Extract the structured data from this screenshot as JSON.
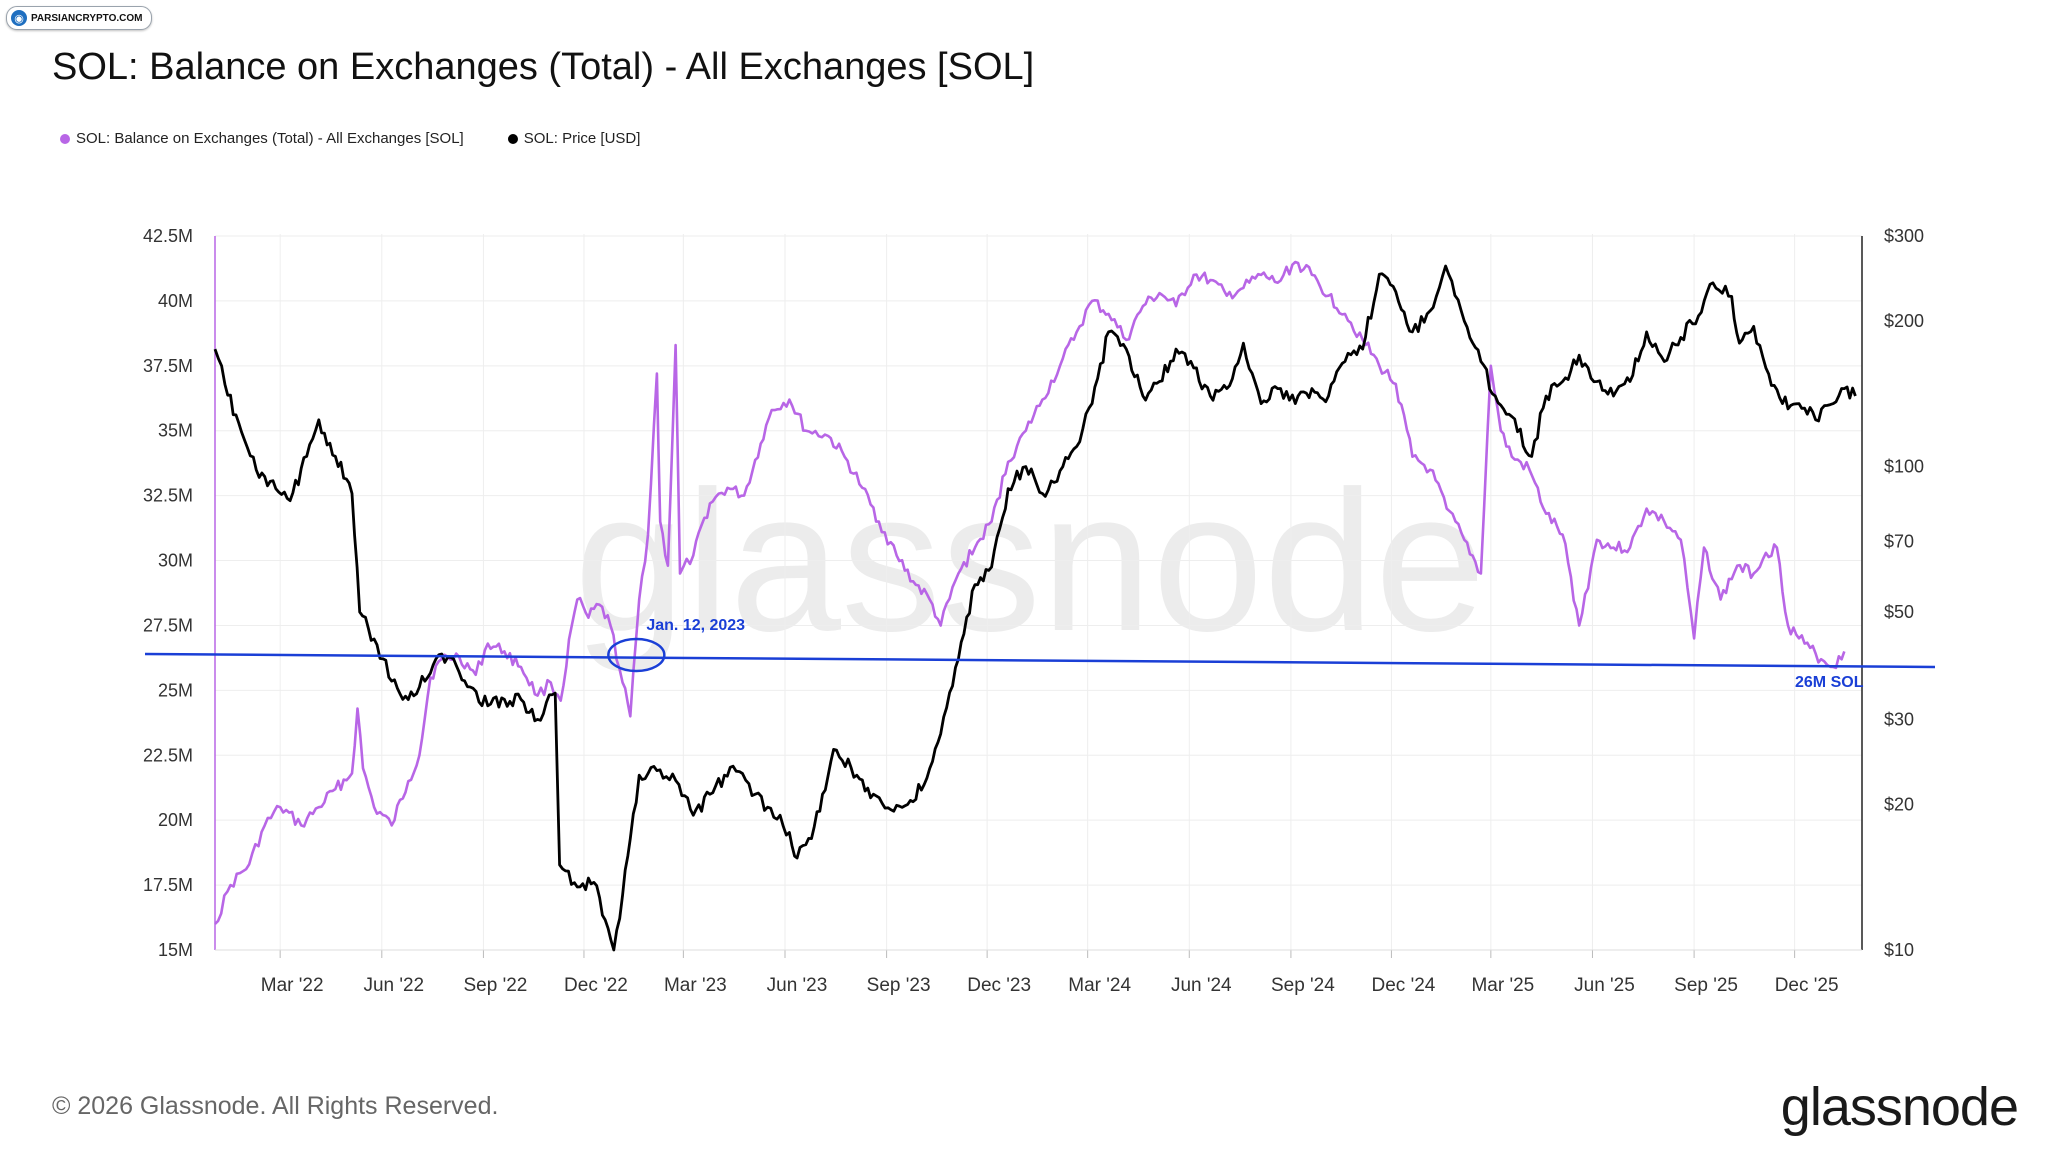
{
  "source_badge": {
    "text": "PARSIANCRYPTO.COM",
    "icon": "globe-icon"
  },
  "title": "SOL: Balance on Exchanges (Total) - All Exchanges [SOL]",
  "legend": [
    {
      "label": "SOL: Balance on Exchanges (Total) - All Exchanges [SOL]",
      "color": "#b866e6"
    },
    {
      "label": "SOL: Price [USD]",
      "color": "#000000"
    }
  ],
  "watermark": "glassnode",
  "footer": "© 2026 Glassnode. All Rights Reserved.",
  "brand": "glassnode",
  "chart_data": {
    "type": "line",
    "x_ticks": [
      "Mar '22",
      "Jun '22",
      "Sep '22",
      "Dec '22",
      "Mar '23",
      "Jun '23",
      "Sep '23",
      "Dec '23",
      "Mar '24",
      "Jun '24",
      "Sep '24",
      "Dec '24",
      "Mar '25",
      "Jun '25",
      "Sep '25",
      "Dec '25"
    ],
    "x_start": "2022-01-01",
    "x_end": "2026-01-31",
    "left_axis": {
      "ticks": [
        "42.5M",
        "40M",
        "37.5M",
        "35M",
        "32.5M",
        "30M",
        "27.5M",
        "25M",
        "22.5M",
        "20M",
        "17.5M",
        "15M"
      ],
      "range": [
        15000000,
        42500000
      ]
    },
    "right_axis": {
      "scale": "log",
      "ticks": [
        "$300",
        "$200",
        "$100",
        "$70",
        "$50",
        "$30",
        "$20",
        "$10"
      ],
      "tick_values": [
        300,
        200,
        100,
        70,
        50,
        30,
        20,
        10
      ],
      "range": [
        10,
        300
      ]
    },
    "grid": true,
    "series": [
      {
        "name": "SOL: Balance on Exchanges (Total) - All Exchanges [SOL]",
        "color": "#b866e6",
        "axis": "left",
        "points": [
          [
            "2022-01-01",
            16.0
          ],
          [
            "2022-01-15",
            17.5
          ],
          [
            "2022-02-01",
            18.3
          ],
          [
            "2022-02-15",
            19.8
          ],
          [
            "2022-03-01",
            20.5
          ],
          [
            "2022-03-20",
            19.8
          ],
          [
            "2022-04-05",
            20.5
          ],
          [
            "2022-04-20",
            21.2
          ],
          [
            "2022-05-05",
            21.8
          ],
          [
            "2022-05-10",
            24.3
          ],
          [
            "2022-05-15",
            22.0
          ],
          [
            "2022-05-25",
            20.5
          ],
          [
            "2022-06-10",
            19.8
          ],
          [
            "2022-06-25",
            21.5
          ],
          [
            "2022-07-05",
            22.5
          ],
          [
            "2022-07-15",
            25.5
          ],
          [
            "2022-07-25",
            26.2
          ],
          [
            "2022-08-10",
            26.3
          ],
          [
            "2022-08-25",
            25.6
          ],
          [
            "2022-09-05",
            26.8
          ],
          [
            "2022-09-20",
            26.5
          ],
          [
            "2022-10-05",
            25.9
          ],
          [
            "2022-10-20",
            24.8
          ],
          [
            "2022-11-01",
            25.3
          ],
          [
            "2022-11-10",
            24.6
          ],
          [
            "2022-11-20",
            27.5
          ],
          [
            "2022-11-25",
            28.5
          ],
          [
            "2022-12-05",
            27.8
          ],
          [
            "2022-12-15",
            28.3
          ],
          [
            "2022-12-25",
            27.5
          ],
          [
            "2023-01-05",
            25.3
          ],
          [
            "2023-01-12",
            24.0
          ],
          [
            "2023-01-20",
            28.5
          ],
          [
            "2023-01-28",
            31.0
          ],
          [
            "2023-02-05",
            37.2
          ],
          [
            "2023-02-08",
            31.5
          ],
          [
            "2023-02-15",
            29.8
          ],
          [
            "2023-02-22",
            38.3
          ],
          [
            "2023-02-26",
            29.5
          ],
          [
            "2023-03-10",
            30.2
          ],
          [
            "2023-03-25",
            32.2
          ],
          [
            "2023-04-10",
            32.8
          ],
          [
            "2023-04-25",
            32.5
          ],
          [
            "2023-05-10",
            34.5
          ],
          [
            "2023-05-20",
            35.8
          ],
          [
            "2023-06-05",
            36.2
          ],
          [
            "2023-06-20",
            35.0
          ],
          [
            "2023-07-10",
            34.8
          ],
          [
            "2023-07-25",
            34.0
          ],
          [
            "2023-08-10",
            32.8
          ],
          [
            "2023-08-25",
            31.5
          ],
          [
            "2023-09-10",
            30.2
          ],
          [
            "2023-09-25",
            29.2
          ],
          [
            "2023-10-10",
            28.5
          ],
          [
            "2023-10-20",
            27.5
          ],
          [
            "2023-11-05",
            29.5
          ],
          [
            "2023-11-20",
            30.5
          ],
          [
            "2023-12-05",
            31.5
          ],
          [
            "2023-12-20",
            33.8
          ],
          [
            "2024-01-05",
            35.0
          ],
          [
            "2024-01-20",
            36.2
          ],
          [
            "2024-02-05",
            37.5
          ],
          [
            "2024-02-20",
            38.8
          ],
          [
            "2024-03-05",
            40.0
          ],
          [
            "2024-03-20",
            39.5
          ],
          [
            "2024-04-05",
            38.5
          ],
          [
            "2024-04-20",
            39.8
          ],
          [
            "2024-05-05",
            40.3
          ],
          [
            "2024-05-20",
            39.8
          ],
          [
            "2024-06-05",
            41.0
          ],
          [
            "2024-06-20",
            40.8
          ],
          [
            "2024-07-05",
            40.2
          ],
          [
            "2024-07-20",
            40.5
          ],
          [
            "2024-08-05",
            41.0
          ],
          [
            "2024-08-20",
            40.7
          ],
          [
            "2024-09-05",
            41.5
          ],
          [
            "2024-09-20",
            41.0
          ],
          [
            "2024-10-05",
            40.2
          ],
          [
            "2024-10-20",
            39.5
          ],
          [
            "2024-11-05",
            38.5
          ],
          [
            "2024-11-20",
            37.5
          ],
          [
            "2024-12-05",
            36.8
          ],
          [
            "2024-12-20",
            34.0
          ],
          [
            "2025-01-05",
            33.5
          ],
          [
            "2025-01-20",
            32.0
          ],
          [
            "2025-02-05",
            30.8
          ],
          [
            "2025-02-20",
            29.5
          ],
          [
            "2025-03-01",
            37.5
          ],
          [
            "2025-03-10",
            35.0
          ],
          [
            "2025-03-20",
            34.0
          ],
          [
            "2025-04-05",
            33.5
          ],
          [
            "2025-04-20",
            31.8
          ],
          [
            "2025-05-05",
            31.0
          ],
          [
            "2025-05-20",
            27.5
          ],
          [
            "2025-06-05",
            30.8
          ],
          [
            "2025-06-20",
            30.5
          ],
          [
            "2025-07-05",
            30.5
          ],
          [
            "2025-07-20",
            32.0
          ],
          [
            "2025-08-05",
            31.5
          ],
          [
            "2025-08-20",
            30.8
          ],
          [
            "2025-09-01",
            27.0
          ],
          [
            "2025-09-10",
            30.5
          ],
          [
            "2025-09-25",
            28.5
          ],
          [
            "2025-10-10",
            29.8
          ],
          [
            "2025-10-25",
            29.5
          ],
          [
            "2025-11-05",
            30.3
          ],
          [
            "2025-11-15",
            30.5
          ],
          [
            "2025-11-25",
            27.5
          ],
          [
            "2025-12-10",
            26.8
          ],
          [
            "2025-12-25",
            26.2
          ],
          [
            "2026-01-05",
            25.9
          ],
          [
            "2026-01-15",
            26.5
          ]
        ]
      },
      {
        "name": "SOL: Price [USD]",
        "color": "#000000",
        "axis": "right",
        "points": [
          [
            "2022-01-01",
            175
          ],
          [
            "2022-01-10",
            148
          ],
          [
            "2022-01-25",
            118
          ],
          [
            "2022-02-10",
            95
          ],
          [
            "2022-02-25",
            90
          ],
          [
            "2022-03-10",
            85
          ],
          [
            "2022-03-25",
            105
          ],
          [
            "2022-04-05",
            125
          ],
          [
            "2022-04-20",
            105
          ],
          [
            "2022-05-05",
            88
          ],
          [
            "2022-05-12",
            50
          ],
          [
            "2022-05-25",
            44
          ],
          [
            "2022-06-10",
            36
          ],
          [
            "2022-06-20",
            33
          ],
          [
            "2022-07-05",
            35
          ],
          [
            "2022-07-20",
            40
          ],
          [
            "2022-08-05",
            40
          ],
          [
            "2022-08-20",
            35
          ],
          [
            "2022-09-05",
            32
          ],
          [
            "2022-09-20",
            33
          ],
          [
            "2022-10-05",
            33
          ],
          [
            "2022-10-20",
            30
          ],
          [
            "2022-11-05",
            34
          ],
          [
            "2022-11-09",
            15
          ],
          [
            "2022-11-25",
            13.5
          ],
          [
            "2022-12-10",
            13.8
          ],
          [
            "2022-12-28",
            10
          ],
          [
            "2023-01-05",
            13
          ],
          [
            "2023-01-12",
            17
          ],
          [
            "2023-01-20",
            23
          ],
          [
            "2023-02-05",
            23.5
          ],
          [
            "2023-02-25",
            22
          ],
          [
            "2023-03-10",
            19
          ],
          [
            "2023-03-25",
            21
          ],
          [
            "2023-04-15",
            24
          ],
          [
            "2023-05-05",
            21
          ],
          [
            "2023-06-05",
            17.5
          ],
          [
            "2023-06-12",
            15.5
          ],
          [
            "2023-06-25",
            17
          ],
          [
            "2023-07-05",
            21
          ],
          [
            "2023-07-15",
            26
          ],
          [
            "2023-08-05",
            23
          ],
          [
            "2023-08-20",
            21
          ],
          [
            "2023-09-05",
            19.5
          ],
          [
            "2023-09-20",
            20
          ],
          [
            "2023-10-05",
            22
          ],
          [
            "2023-10-20",
            28
          ],
          [
            "2023-11-05",
            40
          ],
          [
            "2023-11-20",
            57
          ],
          [
            "2023-12-05",
            62
          ],
          [
            "2023-12-20",
            90
          ],
          [
            "2024-01-05",
            100
          ],
          [
            "2024-01-20",
            88
          ],
          [
            "2024-02-05",
            98
          ],
          [
            "2024-02-20",
            110
          ],
          [
            "2024-03-05",
            135
          ],
          [
            "2024-03-20",
            190
          ],
          [
            "2024-04-05",
            175
          ],
          [
            "2024-04-20",
            140
          ],
          [
            "2024-05-05",
            150
          ],
          [
            "2024-05-20",
            175
          ],
          [
            "2024-06-05",
            160
          ],
          [
            "2024-06-20",
            140
          ],
          [
            "2024-07-05",
            145
          ],
          [
            "2024-07-20",
            180
          ],
          [
            "2024-08-05",
            135
          ],
          [
            "2024-08-20",
            145
          ],
          [
            "2024-09-05",
            135
          ],
          [
            "2024-09-20",
            145
          ],
          [
            "2024-10-05",
            140
          ],
          [
            "2024-10-20",
            165
          ],
          [
            "2024-11-05",
            175
          ],
          [
            "2024-11-20",
            250
          ],
          [
            "2024-12-05",
            230
          ],
          [
            "2024-12-20",
            190
          ],
          [
            "2025-01-05",
            210
          ],
          [
            "2025-01-19",
            260
          ],
          [
            "2025-02-05",
            200
          ],
          [
            "2025-02-20",
            165
          ],
          [
            "2025-03-05",
            140
          ],
          [
            "2025-03-20",
            127
          ],
          [
            "2025-04-07",
            105
          ],
          [
            "2025-04-20",
            140
          ],
          [
            "2025-05-05",
            150
          ],
          [
            "2025-05-20",
            170
          ],
          [
            "2025-06-05",
            150
          ],
          [
            "2025-06-20",
            140
          ],
          [
            "2025-07-05",
            150
          ],
          [
            "2025-07-20",
            190
          ],
          [
            "2025-08-05",
            165
          ],
          [
            "2025-08-20",
            185
          ],
          [
            "2025-09-05",
            205
          ],
          [
            "2025-09-18",
            240
          ],
          [
            "2025-10-05",
            225
          ],
          [
            "2025-10-12",
            180
          ],
          [
            "2025-10-25",
            195
          ],
          [
            "2025-11-05",
            160
          ],
          [
            "2025-11-20",
            135
          ],
          [
            "2025-12-05",
            135
          ],
          [
            "2025-12-20",
            125
          ],
          [
            "2026-01-05",
            135
          ],
          [
            "2026-01-15",
            145
          ],
          [
            "2026-01-25",
            140
          ]
        ]
      }
    ],
    "reference_line": {
      "label": "26M SOL",
      "value_start": 26.4,
      "value_end": 25.9,
      "color": "#1a3fd6"
    },
    "annotation": {
      "label": "Jan. 12, 2023",
      "date": "2023-01-12",
      "color": "#1a3fd6"
    }
  }
}
